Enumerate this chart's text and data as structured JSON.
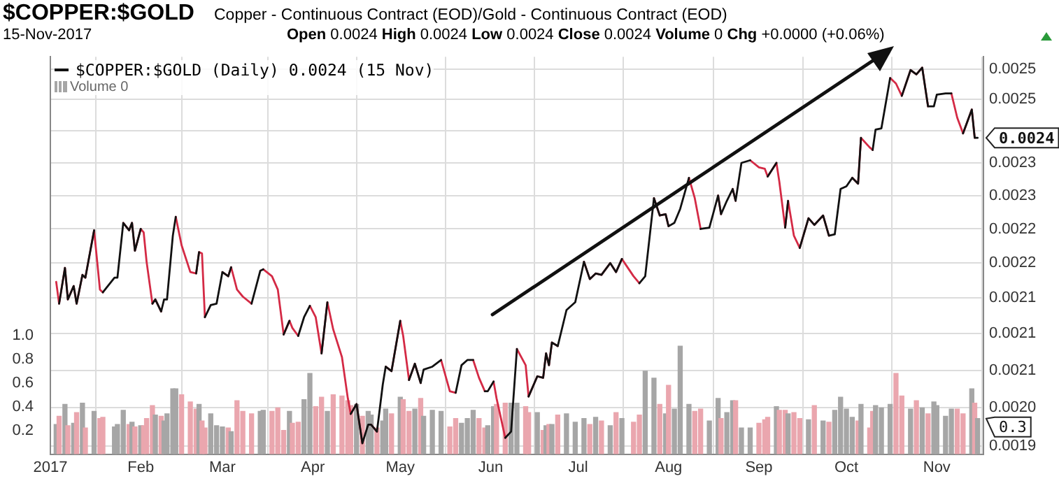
{
  "chart_data": {
    "type": "line",
    "title": "$COPPER:$GOLD",
    "subtitle": "Copper - Continuous Contract (EOD)/Gold - Continuous Contract (EOD)",
    "annotations": [
      "15-Nov-2017",
      "Open 0.0024 High 0.0024 Low 0.0024 Close 0.0024 Volume 0 Chg +0.0000 (+0.06%)",
      "0.0024",
      "0.3"
    ],
    "x": [
      "2017-01-03",
      "2017-01-04",
      "2017-01-06",
      "2017-01-07",
      "2017-01-09",
      "2017-01-10",
      "2017-01-12",
      "2017-01-13",
      "2017-01-16",
      "2017-01-18",
      "2017-01-19",
      "2017-01-23",
      "2017-01-24",
      "2017-01-26",
      "2017-01-28",
      "2017-01-29",
      "2017-01-30",
      "2017-02-01",
      "2017-02-02",
      "2017-02-03",
      "2017-02-05",
      "2017-02-06",
      "2017-02-08",
      "2017-02-09",
      "2017-02-10",
      "2017-02-12",
      "2017-02-13",
      "2017-02-15",
      "2017-02-18",
      "2017-02-20",
      "2017-02-21",
      "2017-02-22",
      "2017-02-23",
      "2017-02-25",
      "2017-02-27",
      "2017-03-01",
      "2017-03-03",
      "2017-03-04",
      "2017-03-06",
      "2017-03-08",
      "2017-03-11",
      "2017-03-14",
      "2017-03-15",
      "2017-03-18",
      "2017-03-20",
      "2017-03-22",
      "2017-03-24",
      "2017-03-25",
      "2017-03-27",
      "2017-03-29",
      "2017-03-31",
      "2017-04-02",
      "2017-04-04",
      "2017-04-06",
      "2017-04-08",
      "2017-04-11",
      "2017-04-13",
      "2017-04-14",
      "2017-04-16",
      "2017-04-18",
      "2017-04-20",
      "2017-04-21",
      "2017-04-23",
      "2017-04-25",
      "2017-04-26",
      "2017-04-28",
      "2017-05-01",
      "2017-05-02",
      "2017-05-04",
      "2017-05-06",
      "2017-05-08",
      "2017-05-09",
      "2017-05-12",
      "2017-05-15",
      "2017-05-18",
      "2017-05-20",
      "2017-05-22",
      "2017-05-24",
      "2017-05-26",
      "2017-05-28",
      "2017-05-30",
      "2017-05-31",
      "2017-06-02",
      "2017-06-03",
      "2017-06-06",
      "2017-06-08",
      "2017-06-10",
      "2017-06-13",
      "2017-06-14",
      "2017-06-17",
      "2017-06-19",
      "2017-06-20",
      "2017-06-21",
      "2017-06-22",
      "2017-06-24",
      "2017-06-27",
      "2017-06-30",
      "2017-07-03",
      "2017-07-05",
      "2017-07-07",
      "2017-07-09",
      "2017-07-12",
      "2017-07-14",
      "2017-07-16",
      "2017-07-20",
      "2017-07-22",
      "2017-07-24",
      "2017-07-27",
      "2017-07-29",
      "2017-07-31",
      "2017-08-01",
      "2017-08-03",
      "2017-08-05",
      "2017-08-08",
      "2017-08-10",
      "2017-08-12",
      "2017-08-15",
      "2017-08-18",
      "2017-08-19",
      "2017-08-21",
      "2017-08-23",
      "2017-08-24",
      "2017-08-26",
      "2017-08-29",
      "2017-09-01",
      "2017-09-03",
      "2017-09-04",
      "2017-09-07",
      "2017-09-08",
      "2017-09-10",
      "2017-09-11",
      "2017-09-13",
      "2017-09-15",
      "2017-09-18",
      "2017-09-20",
      "2017-09-23",
      "2017-09-25",
      "2017-09-27",
      "2017-09-29",
      "2017-10-01",
      "2017-10-03",
      "2017-10-05",
      "2017-10-06",
      "2017-10-09",
      "2017-10-10",
      "2017-10-11",
      "2017-10-13",
      "2017-10-16",
      "2017-10-18",
      "2017-10-20",
      "2017-10-23",
      "2017-10-25",
      "2017-10-27",
      "2017-10-29",
      "2017-10-31",
      "2017-11-01",
      "2017-11-04",
      "2017-11-06",
      "2017-11-08",
      "2017-11-10",
      "2017-11-13",
      "2017-11-14",
      "2017-11-15"
    ],
    "series": [
      {
        "name": "$COPPER:$GOLD (Daily) 0.0024 (15 Nov)",
        "color": "#111111",
        "values": [
          null,
          0.002142,
          0.002193,
          0.002148,
          0.002167,
          0.002142,
          0.002183,
          0.002179,
          0.002248,
          null,
          0.002158,
          0.002179,
          0.002179,
          0.002259,
          0.002248,
          0.002259,
          0.002218,
          0.00225,
          null,
          null,
          0.002142,
          0.002148,
          0.002131,
          0.002148,
          0.002148,
          0.00224,
          0.002268,
          null,
          null,
          0.002185,
          0.002216,
          null,
          0.002123,
          0.00214,
          0.002142,
          0.002187,
          0.002181,
          0.002194,
          null,
          null,
          0.002142,
          0.002189,
          0.002191,
          null,
          null,
          0.002099,
          0.002118,
          null,
          0.002097,
          0.002123,
          0.002139,
          null,
          0.002073,
          0.002144,
          null,
          null,
          null,
          0.001992,
          0.002005,
          0.001954,
          0.001978,
          0.001978,
          0.001969,
          0.002031,
          0.002055,
          0.002049,
          0.002118,
          null,
          0.002037,
          0.002059,
          0.002033,
          0.002051,
          0.002055,
          0.002064,
          null,
          0.00202,
          0.002057,
          0.002064,
          0.002064,
          null,
          0.002022,
          0.002022,
          0.002035,
          null,
          0.001961,
          0.001969,
          0.002079,
          null,
          0.002015,
          0.002042,
          0.00204,
          0.002073,
          0.002057,
          0.002088,
          0.002083,
          0.002133,
          0.002144,
          0.002202,
          0.002177,
          0.002185,
          0.002183,
          0.0022,
          0.002187,
          0.002206,
          null,
          0.002171,
          0.002181,
          0.002296,
          0.00227,
          0.002272,
          0.002254,
          0.002259,
          0.00228,
          0.002327,
          null,
          0.00225,
          0.002252,
          0.0023,
          0.002272,
          0.002292,
          0.00231,
          0.002292,
          0.00235,
          0.002354,
          null,
          null,
          0.002329,
          0.00235,
          null,
          0.002252,
          0.002292,
          null,
          0.002222,
          0.002266,
          0.002256,
          0.00227,
          0.00224,
          0.002242,
          0.00231,
          0.002314,
          0.002327,
          0.002318,
          0.002389,
          null,
          0.00237,
          0.002402,
          0.002404,
          0.002485,
          null,
          0.002456,
          0.002498,
          0.002491,
          0.002502,
          0.002439,
          0.002439,
          0.002458,
          0.00246,
          0.00246,
          null,
          0.002396,
          0.002434,
          0.002389,
          0.002389
        ]
      },
      {
        "color": "#d42a45",
        "values": [
          0.002173,
          0.002142,
          0.002193,
          0.002148,
          0.002167,
          0.002142,
          0.002183,
          0.002179,
          0.002248,
          0.002162,
          0.002158,
          null,
          null,
          0.002259,
          0.002248,
          0.002259,
          0.002218,
          0.00225,
          0.002245,
          0.002202,
          0.002142,
          0.002148,
          0.002131,
          null,
          null,
          null,
          0.002268,
          0.002226,
          0.002187,
          0.002185,
          0.002216,
          0.002214,
          0.002123,
          null,
          null,
          0.002187,
          0.002181,
          0.002194,
          0.002162,
          0.002152,
          0.002142,
          null,
          0.002191,
          0.002181,
          0.002162,
          0.002099,
          0.002118,
          0.002108,
          0.002097,
          null,
          0.002139,
          0.002123,
          0.002073,
          0.002144,
          0.002106,
          0.002068,
          0.002013,
          0.001992,
          0.002005,
          0.001954,
          null,
          0.001978,
          0.001969,
          null,
          0.002055,
          0.002049,
          0.002118,
          0.002097,
          0.002037,
          0.002059,
          0.002033,
          null,
          null,
          0.002064,
          0.002022,
          0.00202,
          null,
          null,
          0.002064,
          0.00204,
          0.002022,
          null,
          0.002035,
          0.002013,
          0.001961,
          null,
          0.002079,
          0.002057,
          0.002015,
          0.002042,
          0.00204,
          0.002073,
          0.002057,
          0.002088,
          0.002083,
          null,
          null,
          0.002202,
          0.002177,
          0.002185,
          0.002183,
          0.0022,
          0.002187,
          0.002206,
          0.002181,
          0.002171,
          null,
          0.002296,
          0.00227,
          0.002272,
          0.002254,
          null,
          null,
          0.002327,
          0.002296,
          0.00225,
          null,
          0.0023,
          0.002272,
          null,
          0.00231,
          0.002292,
          null,
          0.002354,
          0.002343,
          0.002341,
          0.002329,
          0.00235,
          0.002321,
          0.002252,
          0.002292,
          0.00224,
          0.002222,
          0.002266,
          0.002256,
          0.00227,
          0.00224,
          null,
          null,
          null,
          0.002327,
          0.002318,
          0.002389,
          0.002374,
          0.00237,
          null,
          null,
          0.002485,
          0.002476,
          0.002456,
          0.002498,
          0.002491,
          0.002502,
          0.002439,
          null,
          null,
          null,
          0.00246,
          0.002421,
          0.002396,
          0.002434,
          0.002389,
          null
        ]
      },
      {
        "name": "Volume 0",
        "type": "bar",
        "axis": "y2",
        "color": "#a6a6a6",
        "values": [
          0.25,
          0.32,
          0.42,
          0.24,
          0.26,
          0.35,
          0.43,
          0.22,
          0.36,
          0.3,
          0.31,
          0.23,
          0.25,
          0.37,
          0.25,
          0.27,
          0.23,
          0.24,
          0.24,
          0.3,
          0.41,
          0.33,
          0.32,
          0.28,
          0.34,
          0.55,
          0.55,
          0.5,
          0.44,
          0.38,
          0.42,
          0.28,
          0.22,
          0.34,
          0.24,
          0.23,
          0.22,
          0.19,
          0.45,
          0.36,
          0.34,
          0.36,
          0.37,
          0.36,
          0.39,
          0.2,
          0.36,
          0.26,
          0.27,
          0.46,
          0.68,
          0.4,
          0.48,
          0.36,
          0.5,
          0.49,
          0.45,
          0.41,
          0.42,
          0.32,
          0.36,
          0.33,
          0.22,
          0.28,
          0.38,
          0.34,
          0.48,
          0.46,
          0.36,
          0.38,
          0.47,
          0.32,
          0.37,
          0.36,
          0.23,
          0.3,
          0.26,
          0.3,
          0.37,
          0.3,
          0.22,
          0.24,
          0.4,
          0.42,
          0.43,
          0.43,
          0.43,
          0.4,
          0.35,
          0.35,
          0.2,
          0.24,
          0.25,
          0.25,
          0.33,
          0.34,
          0.27,
          0.3,
          0.25,
          0.31,
          0.28,
          0.24,
          0.35,
          0.3,
          0.27,
          0.33,
          0.7,
          0.64,
          0.42,
          0.34,
          0.58,
          0.38,
          0.91,
          0.42,
          0.36,
          0.38,
          0.28,
          0.47,
          0.3,
          0.35,
          0.45,
          0.45,
          0.22,
          0.22,
          0.26,
          0.29,
          0.31,
          0.4,
          0.37,
          0.37,
          0.34,
          0.35,
          0.3,
          0.29,
          0.41,
          0.28,
          0.27,
          0.37,
          0.48,
          0.38,
          0.31,
          0.28,
          0.42,
          0.22,
          0.36,
          0.41,
          0.39,
          0.42,
          0.68,
          0.49,
          0.38,
          0.45,
          0.39,
          0.34,
          0.44,
          0.41,
          0.32,
          0.38,
          0.38,
          0.34,
          0.55,
          0.43,
          0.3
        ],
        "colors": [
          "#a6a6a6",
          "#eaa6ae",
          "#a6a6a6",
          "#eaa6ae",
          "#a6a6a6",
          "#eaa6ae",
          "#a6a6a6",
          "#eaa6ae",
          "#a6a6a6",
          "#eaa6ae",
          "#eaa6ae",
          "#a6a6a6",
          "#a6a6a6",
          "#a6a6a6",
          "#eaa6ae",
          "#a6a6a6",
          "#eaa6ae",
          "#a6a6a6",
          "#eaa6ae",
          "#eaa6ae",
          "#eaa6ae",
          "#a6a6a6",
          "#eaa6ae",
          "#a6a6a6",
          "#a6a6a6",
          "#a6a6a6",
          "#a6a6a6",
          "#eaa6ae",
          "#eaa6ae",
          "#eaa6ae",
          "#a6a6a6",
          "#eaa6ae",
          "#eaa6ae",
          "#a6a6a6",
          "#a6a6a6",
          "#a6a6a6",
          "#eaa6ae",
          "#a6a6a6",
          "#eaa6ae",
          "#eaa6ae",
          "#eaa6ae",
          "#a6a6a6",
          "#a6a6a6",
          "#eaa6ae",
          "#eaa6ae",
          "#eaa6ae",
          "#a6a6a6",
          "#eaa6ae",
          "#eaa6ae",
          "#a6a6a6",
          "#a6a6a6",
          "#eaa6ae",
          "#eaa6ae",
          "#a6a6a6",
          "#eaa6ae",
          "#eaa6ae",
          "#eaa6ae",
          "#eaa6ae",
          "#a6a6a6",
          "#eaa6ae",
          "#a6a6a6",
          "#a6a6a6",
          "#eaa6ae",
          "#a6a6a6",
          "#a6a6a6",
          "#eaa6ae",
          "#a6a6a6",
          "#eaa6ae",
          "#eaa6ae",
          "#a6a6a6",
          "#eaa6ae",
          "#a6a6a6",
          "#a6a6a6",
          "#a6a6a6",
          "#eaa6ae",
          "#eaa6ae",
          "#a6a6a6",
          "#a6a6a6",
          "#a6a6a6",
          "#eaa6ae",
          "#eaa6ae",
          "#a6a6a6",
          "#a6a6a6",
          "#eaa6ae",
          "#eaa6ae",
          "#a6a6a6",
          "#a6a6a6",
          "#eaa6ae",
          "#eaa6ae",
          "#a6a6a6",
          "#eaa6ae",
          "#a6a6a6",
          "#eaa6ae",
          "#a6a6a6",
          "#eaa6ae",
          "#a6a6a6",
          "#a6a6a6",
          "#a6a6a6",
          "#eaa6ae",
          "#a6a6a6",
          "#eaa6ae",
          "#a6a6a6",
          "#eaa6ae",
          "#a6a6a6",
          "#eaa6ae",
          "#eaa6ae",
          "#a6a6a6",
          "#a6a6a6",
          "#eaa6ae",
          "#a6a6a6",
          "#eaa6ae",
          "#a6a6a6",
          "#a6a6a6",
          "#a6a6a6",
          "#eaa6ae",
          "#eaa6ae",
          "#a6a6a6",
          "#a6a6a6",
          "#eaa6ae",
          "#a6a6a6",
          "#a6a6a6",
          "#eaa6ae",
          "#a6a6a6",
          "#a6a6a6",
          "#eaa6ae",
          "#eaa6ae",
          "#eaa6ae",
          "#a6a6a6",
          "#eaa6ae",
          "#eaa6ae",
          "#a6a6a6",
          "#eaa6ae",
          "#eaa6ae",
          "#a6a6a6",
          "#eaa6ae",
          "#a6a6a6",
          "#eaa6ae",
          "#a6a6a6",
          "#a6a6a6",
          "#a6a6a6",
          "#a6a6a6",
          "#eaa6ae",
          "#a6a6a6",
          "#eaa6ae",
          "#eaa6ae",
          "#a6a6a6",
          "#a6a6a6",
          "#a6a6a6",
          "#eaa6ae",
          "#eaa6ae",
          "#a6a6a6",
          "#eaa6ae",
          "#a6a6a6",
          "#eaa6ae",
          "#a6a6a6",
          "#a6a6a6",
          "#a6a6a6",
          "#a6a6a6",
          "#eaa6ae",
          "#eaa6ae",
          "#a6a6a6",
          "#eaa6ae",
          "#a6a6a6"
        ]
      }
    ],
    "xlim": [
      "2017-01-01",
      "2017-11-17"
    ],
    "xticks": [
      {
        "value": "2017-01-01",
        "label": "2017"
      },
      {
        "value": "2017-02-01",
        "label": "Feb"
      },
      {
        "value": "2017-03-01",
        "label": "Mar"
      },
      {
        "value": "2017-04-01",
        "label": "Apr"
      },
      {
        "value": "2017-05-01",
        "label": "May"
      },
      {
        "value": "2017-06-01",
        "label": "Jun"
      },
      {
        "value": "2017-07-01",
        "label": "Jul"
      },
      {
        "value": "2017-08-01",
        "label": "Aug"
      },
      {
        "value": "2017-09-01",
        "label": "Sep"
      },
      {
        "value": "2017-10-01",
        "label": "Oct"
      },
      {
        "value": "2017-11-01",
        "label": "Nov"
      }
    ],
    "ylim": [
      0.001945,
      0.00252
    ],
    "yticks": [
      {
        "value": 0.00195,
        "label": "0.0019"
      },
      {
        "value": 0.002,
        "label": "0.0020"
      },
      {
        "value": 0.00205,
        "label": "0.0021"
      },
      {
        "value": 0.0021,
        "label": "0.0021"
      },
      {
        "value": 0.00215,
        "label": "0.0021"
      },
      {
        "value": 0.0022,
        "label": "0.0022"
      },
      {
        "value": 0.00225,
        "label": "0.0022"
      },
      {
        "value": 0.0023,
        "label": "0.0023"
      },
      {
        "value": 0.00235,
        "label": "0.0023"
      },
      {
        "value": 0.0024,
        "label": null
      },
      {
        "value": 0.00245,
        "label": "0.0025"
      },
      {
        "value": 0.0025,
        "label": "0.0025"
      }
    ],
    "y2lim": [
      0,
      3.35
    ],
    "y2ticks": [
      0.2,
      0.4,
      0.6,
      0.8,
      {
        "value": 1,
        "label": "1.0"
      }
    ],
    "log": "y",
    "grid": true,
    "legend": "top left",
    "marker": "none"
  }
}
